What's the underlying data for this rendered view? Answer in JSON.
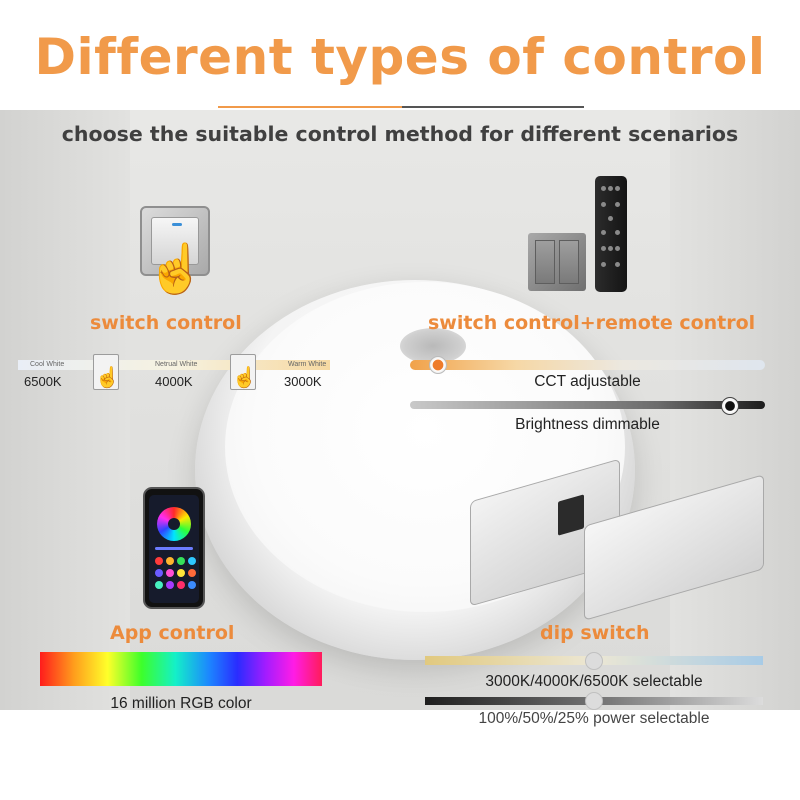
{
  "title": "Different types of control",
  "subtitle": "choose the suitable control method for different scenarios",
  "colors": {
    "title_orange": "#f19a4a",
    "label_orange": "#ec8b3c",
    "text_dark": "#404040",
    "rule_orange": "#f19a4a",
    "rule_dark": "#555555"
  },
  "switch_control": {
    "label": "switch control",
    "strip_tags": [
      "Cool White",
      "Netrual White",
      "Warm White"
    ],
    "kelvins": [
      "6500K",
      "4000K",
      "3000K"
    ],
    "icon": "hand-pointer-icon"
  },
  "remote_control": {
    "label": "switch control+remote control",
    "cct_caption": "CCT adjustable",
    "brightness_caption": "Brightness dimmable",
    "cct_level": 0.08,
    "brightness_level": 0.9
  },
  "app_control": {
    "label": "App control",
    "rgb_caption": "16 million RGB color"
  },
  "dip_switch": {
    "label": "dip switch",
    "cct_caption": "3000K/4000K/6500K selectable",
    "power_caption": "100%/50%/25% power selectable",
    "cct_level": 0.5,
    "power_level": 0.5
  }
}
